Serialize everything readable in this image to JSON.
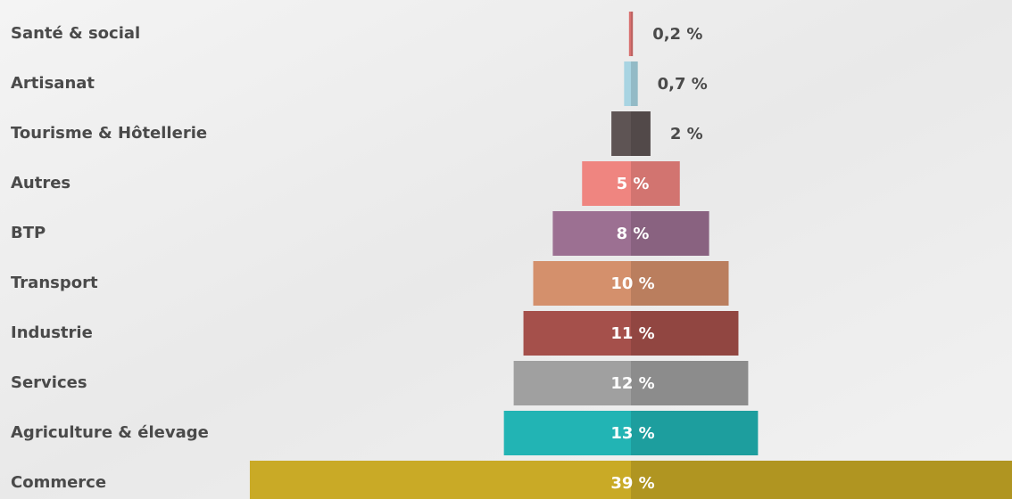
{
  "chart_data": {
    "type": "centered-bar",
    "categories": [
      "Santé & social",
      "Artisanat",
      "Tourisme & Hôtellerie",
      "Autres",
      "BTP",
      "Transport",
      "Industrie",
      "Services",
      "Agriculture & élevage",
      "Commerce"
    ],
    "values": [
      0.2,
      0.7,
      2,
      5,
      8,
      10,
      11,
      12,
      13,
      39
    ],
    "value_labels": [
      "0,2 %",
      "0,7 %",
      "2 %",
      "5 %",
      "8 %",
      "10 %",
      "11 %",
      "12 %",
      "13 %",
      "39 %"
    ],
    "colors": [
      "#d9706f",
      "#a8d4e2",
      "#5e5454",
      "#ef8580",
      "#9c7092",
      "#d4906c",
      "#a5504b",
      "#a0a0a0",
      "#22b4b4",
      "#c9aa26"
    ]
  }
}
